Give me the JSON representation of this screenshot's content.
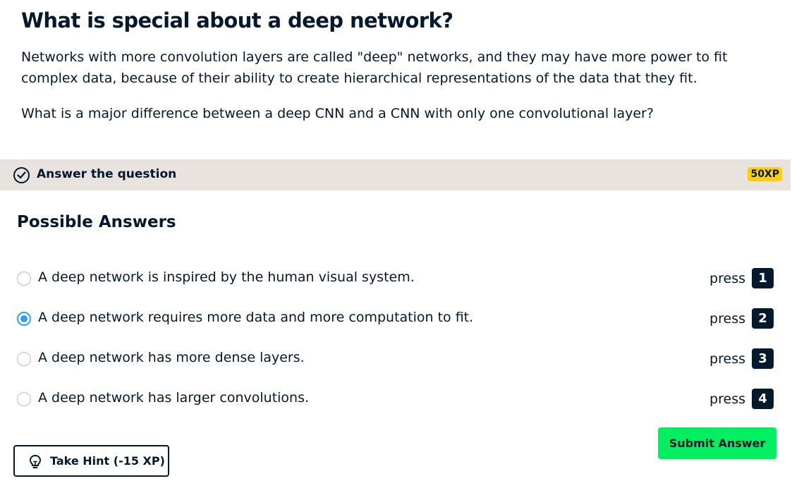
{
  "exercise": {
    "title": "What is special about a deep network?",
    "description": "Networks with more convolution layers are called \"deep\" networks, and they may have more power to fit complex data, because of their ability to create hierarchical representations of the data that they fit.",
    "question": "What is a major difference between a deep CNN and a CNN with only one convolutional layer?"
  },
  "task_bar": {
    "label": "Answer the question",
    "xp": "50XP",
    "icon": "check-circle-icon"
  },
  "answers": {
    "heading": "Possible Answers",
    "press_label": "press",
    "selected_index": 1,
    "options": [
      {
        "text": "A deep network is inspired by the human visual system.",
        "key": "1",
        "selected": false
      },
      {
        "text": "A deep network requires more data and more computation to fit.",
        "key": "2",
        "selected": true
      },
      {
        "text": "A deep network has more dense layers.",
        "key": "3",
        "selected": false
      },
      {
        "text": "A deep network has larger convolutions.",
        "key": "4",
        "selected": false
      }
    ]
  },
  "actions": {
    "submit_label": "Submit Answer",
    "hint_label": "Take Hint (-15 XP)",
    "hint_icon": "lightbulb-icon"
  },
  "colors": {
    "navy": "#05192d",
    "bar_bg": "#e8e3df",
    "xp_yellow": "#fcce0d",
    "submit_green": "#03ef62",
    "radio_blue": "#2e9ef5"
  }
}
